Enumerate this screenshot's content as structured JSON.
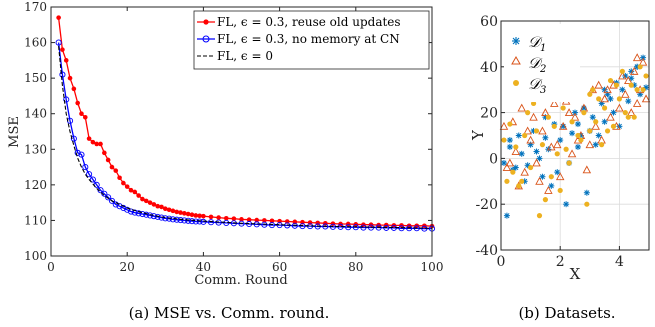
{
  "captions": {
    "a": "(a) MSE vs. Comm. round.",
    "b": "(b) Datasets."
  },
  "chart_data": [
    {
      "type": "line",
      "xlabel": "Comm. Round",
      "ylabel": "MSE",
      "xlim": [
        0,
        100
      ],
      "ylim": [
        100,
        170
      ],
      "xticks": [
        0,
        20,
        40,
        60,
        80,
        100
      ],
      "yticks": [
        100,
        110,
        120,
        130,
        140,
        150,
        160,
        170
      ],
      "grid": false,
      "legend_position": "top-right",
      "series": [
        {
          "name": "FL, ϵ = 0.3, reuse old updates",
          "color": "#ff0000",
          "marker": "dot",
          "x": [
            2,
            3,
            4,
            5,
            6,
            7,
            8,
            9,
            10,
            11,
            12,
            13,
            14,
            15,
            16,
            17,
            18,
            19,
            20,
            21,
            22,
            23,
            24,
            25,
            26,
            27,
            28,
            29,
            30,
            31,
            32,
            33,
            34,
            35,
            36,
            37,
            38,
            39,
            40,
            42,
            44,
            46,
            48,
            50,
            52,
            54,
            56,
            58,
            60,
            62,
            64,
            66,
            68,
            70,
            72,
            74,
            76,
            78,
            80,
            82,
            84,
            86,
            88,
            90,
            92,
            94,
            96,
            98,
            100
          ],
          "y": [
            167,
            158,
            155,
            150,
            147,
            143,
            140,
            139,
            133,
            132,
            131.5,
            131.5,
            129,
            127,
            125,
            124,
            122,
            120.5,
            119.5,
            118.5,
            118,
            117,
            116,
            115.5,
            115,
            114.5,
            114,
            113.8,
            113.3,
            113,
            112.7,
            112.4,
            112.2,
            112,
            111.8,
            111.6,
            111.4,
            111.3,
            111.2,
            111,
            110.8,
            110.6,
            110.5,
            110.3,
            110.2,
            110.1,
            110,
            109.9,
            109.8,
            109.7,
            109.6,
            109.5,
            109.4,
            109.3,
            109.2,
            109.1,
            109,
            109,
            108.9,
            108.8,
            108.8,
            108.7,
            108.7,
            108.6,
            108.6,
            108.5,
            108.5,
            108.5,
            108.4
          ]
        },
        {
          "name": "FL, ϵ = 0.3, no memory at CN",
          "color": "#0000ff",
          "marker": "circle",
          "x": [
            2,
            3,
            4,
            5,
            6,
            7,
            8,
            9,
            10,
            11,
            12,
            13,
            14,
            15,
            16,
            17,
            18,
            19,
            20,
            21,
            22,
            23,
            24,
            25,
            26,
            27,
            28,
            29,
            30,
            31,
            32,
            33,
            34,
            35,
            36,
            37,
            38,
            39,
            40,
            42,
            44,
            46,
            48,
            50,
            52,
            54,
            56,
            58,
            60,
            62,
            64,
            66,
            68,
            70,
            72,
            74,
            76,
            78,
            80,
            82,
            84,
            86,
            88,
            90,
            92,
            94,
            96,
            98,
            100
          ],
          "y": [
            160,
            151,
            144,
            138,
            133,
            129,
            128.5,
            125,
            123,
            121.5,
            120,
            118.5,
            117.5,
            116.5,
            115.5,
            114.5,
            114,
            113.5,
            113,
            112.5,
            112.2,
            112,
            111.8,
            111.6,
            111.4,
            111.2,
            111,
            110.8,
            110.6,
            110.5,
            110.3,
            110.2,
            110.1,
            110,
            109.9,
            109.8,
            109.7,
            109.7,
            109.6,
            109.5,
            109.4,
            109.3,
            109.2,
            109.1,
            109,
            108.9,
            108.8,
            108.7,
            108.7,
            108.6,
            108.5,
            108.4,
            108.4,
            108.3,
            108.3,
            108.2,
            108.2,
            108.1,
            108.1,
            108,
            108,
            108,
            107.9,
            107.9,
            107.8,
            107.8,
            107.8,
            107.7,
            107.7
          ]
        },
        {
          "name": "FL, ϵ = 0",
          "color": "#000000",
          "marker": "none",
          "dash": "dashed",
          "x": [
            2,
            3,
            4,
            5,
            6,
            7,
            8,
            9,
            10,
            12,
            14,
            16,
            18,
            20,
            22,
            24,
            26,
            28,
            30,
            35,
            40,
            45,
            50,
            55,
            60,
            65,
            70,
            75,
            80,
            85,
            90,
            95,
            100
          ],
          "y": [
            159,
            148,
            140,
            135,
            131,
            127.5,
            125,
            123,
            121.5,
            119,
            117,
            115.5,
            114.5,
            113.5,
            112.8,
            112.2,
            111.6,
            111.2,
            110.8,
            110.2,
            109.8,
            109.5,
            109.2,
            109,
            108.8,
            108.6,
            108.4,
            108.3,
            108.2,
            108.1,
            108,
            107.9,
            107.8
          ]
        }
      ]
    },
    {
      "type": "scatter",
      "xlabel": "X",
      "ylabel": "Y",
      "xlim": [
        0,
        5
      ],
      "ylim": [
        -40,
        60
      ],
      "xticks": [
        0,
        2,
        4
      ],
      "yticks": [
        -40,
        -20,
        0,
        20,
        40,
        60
      ],
      "grid": true,
      "legend_position": "top-left",
      "series": [
        {
          "name": "D1",
          "color": "#0072bd",
          "marker": "star",
          "x": [
            0.1,
            0.2,
            0.3,
            0.5,
            0.6,
            0.7,
            0.9,
            1.0,
            1.1,
            1.3,
            1.4,
            1.5,
            1.6,
            1.8,
            1.9,
            2.0,
            2.1,
            2.3,
            2.4,
            2.5,
            2.6,
            2.8,
            2.9,
            3.0,
            3.1,
            3.3,
            3.4,
            3.5,
            3.6,
            3.8,
            3.9,
            4.0,
            4.1,
            4.3,
            4.4,
            4.5,
            4.6,
            4.7,
            4.8,
            4.9,
            0.3,
            0.8,
            1.2,
            1.7,
            2.2,
            2.7,
            3.2,
            3.7,
            4.2,
            4.6,
            0.4,
            1.5,
            2.6,
            3.5,
            4.4
          ],
          "y": [
            -2,
            -25,
            5,
            -4,
            10,
            2,
            -3,
            6,
            12,
            0,
            -8,
            9,
            4,
            15,
            -6,
            8,
            14,
            -2,
            11,
            20,
            5,
            22,
            -15,
            12,
            18,
            10,
            24,
            16,
            28,
            20,
            33,
            14,
            30,
            25,
            38,
            32,
            40,
            28,
            44,
            31,
            8,
            -10,
            3,
            -12,
            -20,
            10,
            6,
            26,
            36,
            40,
            -5,
            18,
            15,
            30,
            35
          ]
        },
        {
          "name": "D2",
          "color": "#d95319",
          "marker": "triangle",
          "x": [
            0.1,
            0.2,
            0.4,
            0.5,
            0.7,
            0.8,
            1.0,
            1.1,
            1.2,
            1.4,
            1.5,
            1.7,
            1.8,
            2.0,
            2.1,
            2.2,
            2.4,
            2.5,
            2.7,
            2.8,
            3.0,
            3.1,
            3.2,
            3.4,
            3.5,
            3.7,
            3.8,
            4.0,
            4.1,
            4.2,
            4.4,
            4.5,
            4.7,
            4.8,
            4.9,
            0.3,
            0.9,
            1.3,
            1.9,
            2.3,
            2.9,
            3.3,
            3.9,
            4.3,
            4.6,
            0.6,
            1.6,
            2.6,
            3.6,
            4.6
          ],
          "y": [
            14,
            -4,
            16,
            3,
            22,
            -6,
            8,
            18,
            -2,
            12,
            20,
            5,
            24,
            -8,
            14,
            25,
            2,
            18,
            10,
            22,
            6,
            30,
            14,
            8,
            26,
            18,
            32,
            22,
            36,
            28,
            20,
            38,
            30,
            42,
            26,
            -2,
            12,
            -10,
            6,
            20,
            -5,
            32,
            14,
            34,
            44,
            -12,
            -14,
            8,
            30,
            24
          ]
        },
        {
          "name": "D3",
          "color": "#edb120",
          "marker": "dot",
          "x": [
            0.1,
            0.2,
            0.3,
            0.5,
            0.6,
            0.8,
            0.9,
            1.0,
            1.2,
            1.3,
            1.4,
            1.6,
            1.7,
            1.8,
            2.0,
            2.1,
            2.3,
            2.4,
            2.5,
            2.7,
            2.8,
            3.0,
            3.1,
            3.2,
            3.4,
            3.5,
            3.7,
            3.8,
            4.0,
            4.1,
            4.2,
            4.4,
            4.5,
            4.7,
            4.8,
            4.9,
            0.4,
            1.1,
            1.5,
            1.9,
            2.6,
            2.9,
            3.3,
            3.6,
            3.9,
            4.3,
            4.6,
            0.7,
            2.2,
            3.0
          ],
          "y": [
            8,
            -10,
            15,
            5,
            -12,
            10,
            20,
            -4,
            12,
            -25,
            6,
            18,
            -8,
            14,
            -14,
            22,
            -2,
            16,
            28,
            8,
            20,
            12,
            30,
            16,
            6,
            22,
            34,
            14,
            26,
            38,
            20,
            32,
            18,
            40,
            30,
            36,
            -6,
            24,
            -18,
            2,
            10,
            -20,
            26,
            12,
            32,
            18,
            30,
            -10,
            4,
            28
          ]
        }
      ]
    }
  ]
}
